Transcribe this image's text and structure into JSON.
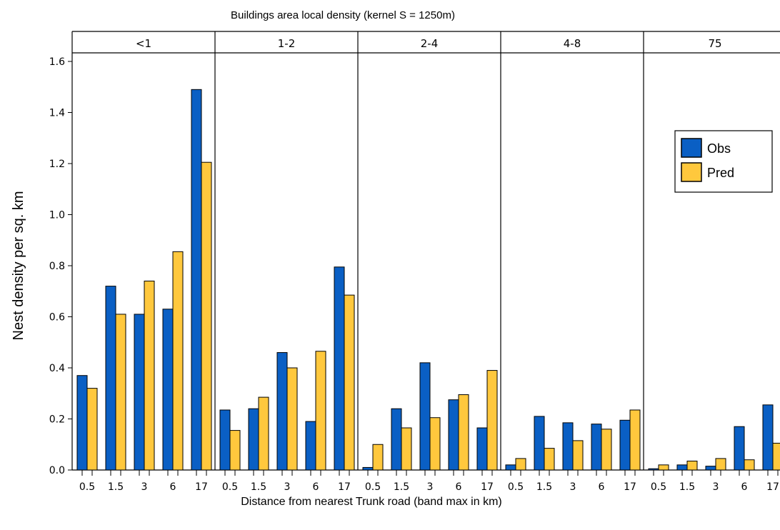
{
  "chart_data": {
    "type": "bar",
    "title": "Buildings area local density (kernel S = 1250m)",
    "xlabel": "Distance from nearest Trunk road (band max in km)",
    "ylabel": "Nest density per sq. km",
    "ylim": [
      0,
      1.6
    ],
    "yticks": [
      "0.0",
      "0.2",
      "0.4",
      "0.6",
      "0.8",
      "1.0",
      "1.2",
      "1.4",
      "1.6"
    ],
    "categories": [
      "0.5",
      "1.5",
      "3",
      "6",
      "17"
    ],
    "legend": {
      "position": "right",
      "entries": [
        "Obs",
        "Pred"
      ]
    },
    "colors": {
      "Obs": "#0a5fc4",
      "Pred": "#ffc83d"
    },
    "panels": [
      {
        "label": "<1",
        "series": [
          {
            "name": "Obs",
            "values": [
              0.37,
              0.72,
              0.61,
              0.63,
              1.49
            ]
          },
          {
            "name": "Pred",
            "values": [
              0.32,
              0.61,
              0.74,
              0.855,
              1.205
            ]
          }
        ]
      },
      {
        "label": "1-2",
        "series": [
          {
            "name": "Obs",
            "values": [
              0.235,
              0.24,
              0.46,
              0.19,
              0.795
            ]
          },
          {
            "name": "Pred",
            "values": [
              0.155,
              0.285,
              0.4,
              0.465,
              0.685
            ]
          }
        ]
      },
      {
        "label": "2-4",
        "series": [
          {
            "name": "Obs",
            "values": [
              0.01,
              0.24,
              0.42,
              0.275,
              0.165
            ]
          },
          {
            "name": "Pred",
            "values": [
              0.1,
              0.165,
              0.205,
              0.295,
              0.39
            ]
          }
        ]
      },
      {
        "label": "4-8",
        "series": [
          {
            "name": "Obs",
            "values": [
              0.02,
              0.21,
              0.185,
              0.18,
              0.195
            ]
          },
          {
            "name": "Pred",
            "values": [
              0.045,
              0.085,
              0.115,
              0.16,
              0.235
            ]
          }
        ]
      },
      {
        "label": "75",
        "series": [
          {
            "name": "Obs",
            "values": [
              0.005,
              0.02,
              0.015,
              0.17,
              0.255
            ]
          },
          {
            "name": "Pred",
            "values": [
              0.02,
              0.035,
              0.045,
              0.04,
              0.105
            ]
          }
        ]
      }
    ]
  }
}
